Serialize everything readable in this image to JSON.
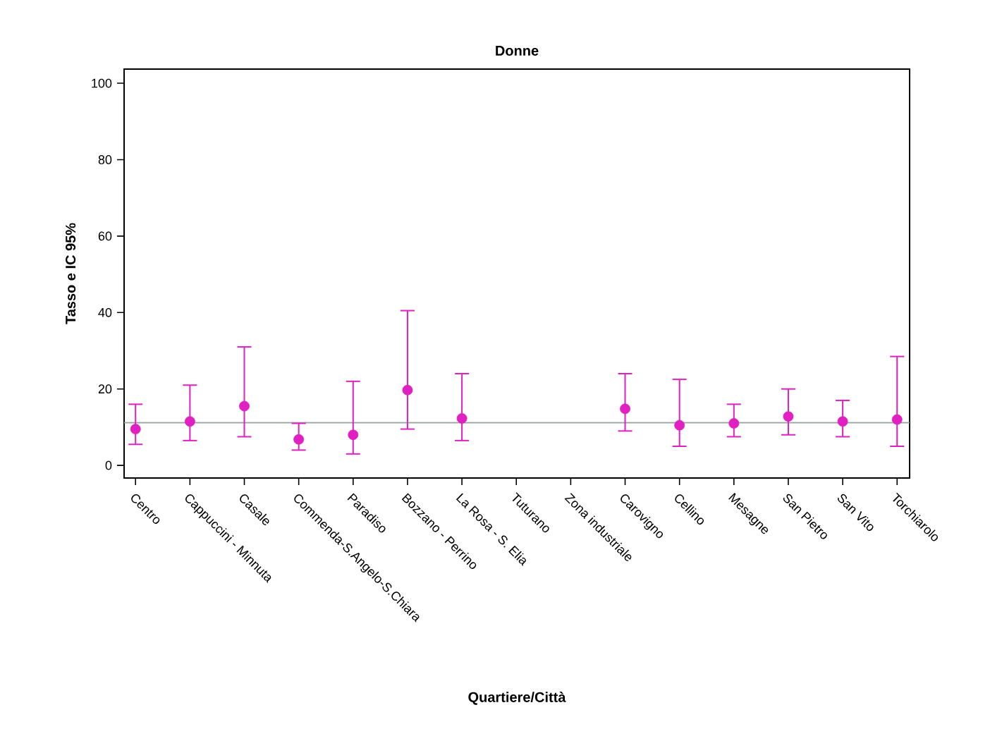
{
  "chart_data": {
    "type": "scatter",
    "title": "Donne",
    "xlabel": "Quartiere/Città",
    "ylabel": "Tasso e IC 95%",
    "categories": [
      "Centro",
      "Cappuccini - Minnuta",
      "Casale",
      "Commenda-S.Angelo-S.Chiara",
      "Paradiso",
      "Bozzano - Perrino",
      "La Rosa - S. Elia",
      "Tuturano",
      "Zona industriale",
      "Carovigno",
      "Cellino",
      "Mesagne",
      "San Pietro",
      "San Vito",
      "Torchiarolo"
    ],
    "series": [
      {
        "color": "#e020c0",
        "values": [
          9.5,
          11.5,
          15.5,
          6.8,
          8,
          19.7,
          12.3,
          null,
          null,
          14.8,
          10.5,
          11,
          12.8,
          11.5,
          12
        ],
        "errors": [
          [
            5.5,
            16
          ],
          [
            6.5,
            21
          ],
          [
            7.5,
            31
          ],
          [
            4,
            11
          ],
          [
            3,
            22
          ],
          [
            9.5,
            40.5
          ],
          [
            6.5,
            24
          ],
          null,
          null,
          [
            9,
            24
          ],
          [
            5,
            22.5
          ],
          [
            7.5,
            16
          ],
          [
            8,
            20
          ],
          [
            7.5,
            17
          ],
          [
            5,
            28.5
          ]
        ]
      }
    ],
    "ylim": [
      -3.3,
      103.7
    ],
    "yticks": [
      0,
      20,
      40,
      60,
      80,
      100
    ],
    "ref_lines": [
      {
        "axis": "y",
        "value": 11.2,
        "color": "#9aa5a0"
      }
    ],
    "marker": "circle",
    "grid": false
  }
}
